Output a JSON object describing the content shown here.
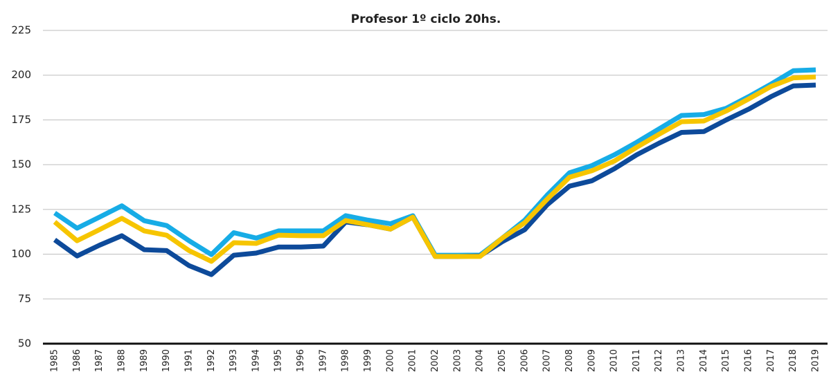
{
  "chart_data": {
    "type": "line",
    "title": "Profesor 1º ciclo 20hs.",
    "categories": [
      "1985",
      "1986",
      "1987",
      "1988",
      "1989",
      "1990",
      "1991",
      "1992",
      "1993",
      "1994",
      "1995",
      "1996",
      "1997",
      "1998",
      "1999",
      "2000",
      "2001",
      "2002",
      "2003",
      "2004",
      "2005",
      "2006",
      "2007",
      "2008",
      "2009",
      "2010",
      "2011",
      "2012",
      "2013",
      "2014",
      "2015",
      "2016",
      "2017",
      "2018",
      "2019"
    ],
    "series": [
      {
        "color": "#17ace6",
        "values": [
          123,
          114.5,
          120.7,
          127,
          118.7,
          116,
          107.5,
          99.8,
          112,
          109,
          113,
          113,
          113,
          121.5,
          119,
          117,
          121.5,
          99.4,
          99.4,
          99.5,
          109,
          119,
          133,
          145.5,
          149.5,
          155.5,
          162.5,
          170,
          177.5,
          178,
          181.5,
          188,
          195,
          202.5,
          203
        ]
      },
      {
        "color": "#0d4a9a",
        "values": [
          108,
          99,
          105,
          110.3,
          102.5,
          102,
          93.6,
          88.6,
          99.4,
          100.6,
          104,
          104,
          104.5,
          118,
          116.4,
          114,
          120.7,
          98.7,
          98.7,
          99,
          107,
          113.7,
          127.6,
          138,
          141,
          147.7,
          155.5,
          162,
          168,
          168.5,
          175,
          181,
          188,
          194,
          194.5
        ]
      },
      {
        "color": "#f6c500",
        "values": [
          118,
          107.5,
          113.7,
          120,
          113,
          110.6,
          102,
          96,
          106.4,
          106,
          110.6,
          110.3,
          110.3,
          118.8,
          116.4,
          114,
          120.7,
          98.7,
          98.7,
          98.7,
          109,
          117.6,
          130.7,
          143,
          146.6,
          152,
          159.7,
          167,
          174,
          174.4,
          180,
          186.7,
          193.7,
          198.5,
          199
        ]
      }
    ],
    "ylim": [
      50,
      225
    ],
    "yticks": [
      50,
      75,
      100,
      125,
      150,
      175,
      200,
      225
    ],
    "grid": true
  }
}
